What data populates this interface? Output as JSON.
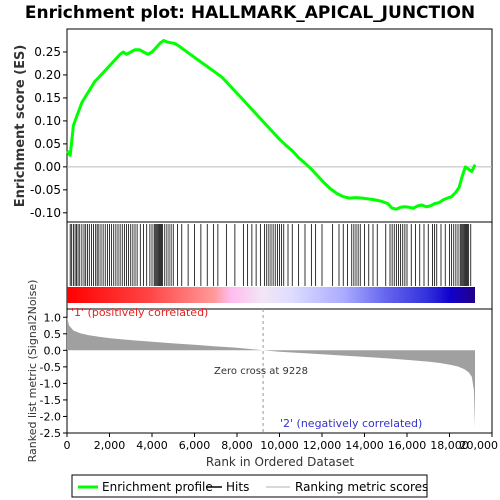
{
  "chart_data": {
    "type": "line",
    "title": "Enrichment plot: HALLMARK_APICAL_JUNCTION",
    "top_panel": {
      "ylabel": "Enrichment score (ES)",
      "ylim": [
        -0.12,
        0.3
      ],
      "yticks": [
        "-0.10",
        "-0.05",
        "0.00",
        "0.05",
        "0.10",
        "0.15",
        "0.20",
        "0.25"
      ],
      "ytick_values": [
        -0.1,
        -0.05,
        0.0,
        0.05,
        0.1,
        0.15,
        0.2,
        0.25
      ],
      "series": [
        {
          "name": "Enrichment profile",
          "color": "#00ff00",
          "x": [
            0,
            150,
            300,
            500,
            700,
            900,
            1100,
            1300,
            1500,
            1700,
            1900,
            2100,
            2300,
            2500,
            2650,
            2800,
            3000,
            3200,
            3400,
            3600,
            3800,
            4000,
            4200,
            4400,
            4550,
            4700,
            4900,
            5100,
            5300,
            5500,
            5800,
            6100,
            6400,
            6700,
            7000,
            7300,
            7600,
            7900,
            8200,
            8500,
            8800,
            9100,
            9400,
            9700,
            10000,
            10300,
            10600,
            10900,
            11200,
            11500,
            11800,
            12100,
            12400,
            12700,
            13000,
            13300,
            13600,
            13900,
            14200,
            14500,
            14800,
            15100,
            15300,
            15500,
            15700,
            15900,
            16100,
            16300,
            16500,
            16700,
            16900,
            17100,
            17300,
            17500,
            17700,
            17900,
            18100,
            18300,
            18450,
            18600,
            18750,
            18900,
            19050,
            19200
          ],
          "y": [
            0.035,
            0.025,
            0.09,
            0.115,
            0.14,
            0.155,
            0.17,
            0.185,
            0.195,
            0.205,
            0.215,
            0.225,
            0.235,
            0.245,
            0.25,
            0.245,
            0.25,
            0.255,
            0.255,
            0.25,
            0.245,
            0.25,
            0.26,
            0.27,
            0.275,
            0.272,
            0.27,
            0.268,
            0.262,
            0.255,
            0.245,
            0.235,
            0.225,
            0.215,
            0.205,
            0.195,
            0.18,
            0.165,
            0.15,
            0.135,
            0.12,
            0.105,
            0.09,
            0.075,
            0.06,
            0.047,
            0.035,
            0.02,
            0.008,
            -0.005,
            -0.02,
            -0.035,
            -0.048,
            -0.058,
            -0.065,
            -0.068,
            -0.067,
            -0.068,
            -0.07,
            -0.072,
            -0.075,
            -0.08,
            -0.09,
            -0.092,
            -0.088,
            -0.087,
            -0.088,
            -0.09,
            -0.085,
            -0.083,
            -0.087,
            -0.085,
            -0.08,
            -0.078,
            -0.072,
            -0.068,
            -0.065,
            -0.055,
            -0.045,
            -0.02,
            0.0,
            -0.005,
            -0.01,
            0.005
          ]
        }
      ]
    },
    "middle_panel": {
      "legend_label": "Hits",
      "hits": [
        150,
        220,
        300,
        380,
        450,
        520,
        600,
        700,
        800,
        880,
        960,
        1050,
        1150,
        1250,
        1350,
        1420,
        1500,
        1600,
        1700,
        1800,
        1900,
        2000,
        2100,
        2200,
        2300,
        2400,
        2500,
        2600,
        2700,
        2800,
        2900,
        3000,
        3100,
        3200,
        3300,
        3450,
        3600,
        3750,
        3900,
        4000,
        4100,
        4150,
        4200,
        4250,
        4300,
        4350,
        4400,
        4450,
        4500,
        4600,
        4700,
        4800,
        4900,
        5000,
        5200,
        5400,
        5700,
        6000,
        6300,
        6600,
        6900,
        7100,
        7500,
        7900,
        8300,
        8500,
        8700,
        8900,
        9100,
        9300,
        9400,
        9500,
        9600,
        9700,
        9800,
        9900,
        10000,
        10100,
        10200,
        10400,
        10600,
        10900,
        11200,
        11500,
        11700,
        12000,
        12500,
        12800,
        13000,
        13200,
        13400,
        13500,
        13600,
        13700,
        13800,
        14000,
        14200,
        14400,
        14600,
        15000,
        15200,
        15300,
        15400,
        15500,
        15600,
        15700,
        15800,
        15900,
        16000,
        16200,
        16400,
        16600,
        16800,
        17000,
        17200,
        17300,
        17400,
        17600,
        17800,
        18000,
        18100,
        18200,
        18300,
        18400,
        18500,
        18550,
        18600,
        18650,
        18700,
        18750,
        18800,
        18850,
        18900,
        19000
      ]
    },
    "bottom_panel": {
      "ylabel": "Ranked list metric (Signal2Noise)",
      "ylim": [
        -2.5,
        1.25
      ],
      "yticks": [
        "-2.5",
        "-2.0",
        "-1.5",
        "-1.0",
        "-0.5",
        "0.0",
        "0.5",
        "1.0"
      ],
      "ytick_values": [
        -2.5,
        -2.0,
        -1.5,
        -1.0,
        -0.5,
        0.0,
        0.5,
        1.0
      ],
      "legend_label": "Ranking metric scores",
      "metric_profile": {
        "x": [
          0,
          100,
          300,
          600,
          1000,
          1500,
          2000,
          3000,
          4000,
          5000,
          6000,
          7000,
          8000,
          9228,
          10000,
          11000,
          12000,
          13000,
          14000,
          15000,
          16000,
          17000,
          17500,
          18000,
          18400,
          18700,
          18900,
          19050,
          19150,
          19200
        ],
        "y": [
          1.0,
          0.75,
          0.6,
          0.52,
          0.46,
          0.41,
          0.37,
          0.31,
          0.26,
          0.21,
          0.17,
          0.12,
          0.08,
          0.0,
          -0.04,
          -0.08,
          -0.12,
          -0.16,
          -0.2,
          -0.24,
          -0.29,
          -0.34,
          -0.38,
          -0.43,
          -0.49,
          -0.57,
          -0.66,
          -0.8,
          -1.2,
          -2.35
        ]
      },
      "annotations": {
        "zero_cross": "Zero cross at 9228",
        "zero_cross_x": 9228,
        "positive": "'1' (positively correlated)",
        "negative": "'2' (negatively correlated)"
      },
      "xlabel": "Rank in Ordered Dataset",
      "xlim": [
        0,
        20000
      ],
      "xticks": [
        "0",
        "2,000",
        "4,000",
        "6,000",
        "8,000",
        "10,000",
        "12,000",
        "14,000",
        "16,000",
        "18,000",
        "20,000"
      ],
      "xtick_values": [
        0,
        2000,
        4000,
        6000,
        8000,
        10000,
        12000,
        14000,
        16000,
        18000,
        20000
      ]
    },
    "colors": {
      "es_line": "#00ff00",
      "hit_line": "#000000",
      "zero_line": "#bbbbbb",
      "metric_fill": "#a0a0a0",
      "positive_text": "#e32222",
      "negative_text": "#3333cc",
      "bar_positive": "#ff0000",
      "bar_mid": "#ffffff",
      "bar_negative": "#0000ff",
      "bar_end": "#220088"
    },
    "legend": {
      "entries": [
        "Enrichment profile",
        "Hits",
        "Ranking metric scores"
      ]
    }
  }
}
